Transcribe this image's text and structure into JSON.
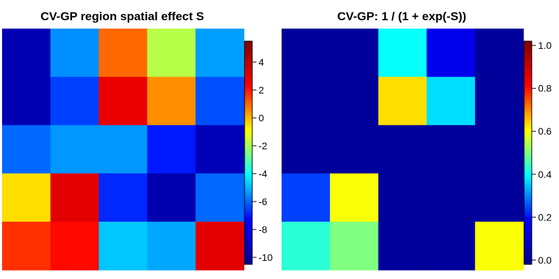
{
  "chart_data": [
    {
      "type": "heatmap",
      "title": "CV-GP region spatial effect S",
      "rows": 5,
      "cols": 5,
      "values": [
        [
          -9.5,
          -5.5,
          1.0,
          -1.8,
          -5.3
        ],
        [
          -9.5,
          -6.5,
          2.8,
          0.5,
          -6.3
        ],
        [
          -6.0,
          -5.4,
          -5.4,
          -7.0,
          -9.3
        ],
        [
          -0.5,
          3.0,
          -6.8,
          -9.6,
          -6.0
        ],
        [
          1.7,
          2.2,
          -4.8,
          -5.2,
          3.0
        ]
      ],
      "colorbar": {
        "range": [
          -10.5,
          5.5
        ],
        "ticks": [
          -10,
          -8,
          -6,
          -4,
          -2,
          0,
          2,
          4
        ],
        "tick_labels": [
          "-10",
          "-8",
          "-6",
          "-4",
          "-2",
          "0",
          "2",
          "4"
        ]
      },
      "colorscale": [
        "#00008F",
        "#0000FF",
        "#00FFFF",
        "#FFFF00",
        "#FF0000",
        "#800000"
      ]
    },
    {
      "type": "heatmap",
      "title": "CV-GP: 1 / (1 + exp(-S))",
      "rows": 5,
      "cols": 5,
      "values": [
        [
          0.0,
          0.0,
          0.4,
          0.15,
          0.0
        ],
        [
          0.0,
          0.0,
          0.63,
          0.37,
          0.0
        ],
        [
          0.0,
          0.0,
          0.0,
          0.0,
          0.0
        ],
        [
          0.24,
          0.6,
          0.0,
          0.0,
          0.0
        ],
        [
          0.43,
          0.5,
          0.0,
          0.0,
          0.6
        ]
      ],
      "colorbar": {
        "range": [
          -0.02,
          1.02
        ],
        "ticks": [
          0.0,
          0.2,
          0.4,
          0.6,
          0.8,
          1.0
        ],
        "tick_labels": [
          "0.0",
          "0.2",
          "0.4",
          "0.6",
          "0.8",
          "1.0"
        ]
      },
      "colorscale": [
        "#00008F",
        "#0000FF",
        "#00FFFF",
        "#FFFF00",
        "#FF0000",
        "#800000"
      ]
    }
  ]
}
